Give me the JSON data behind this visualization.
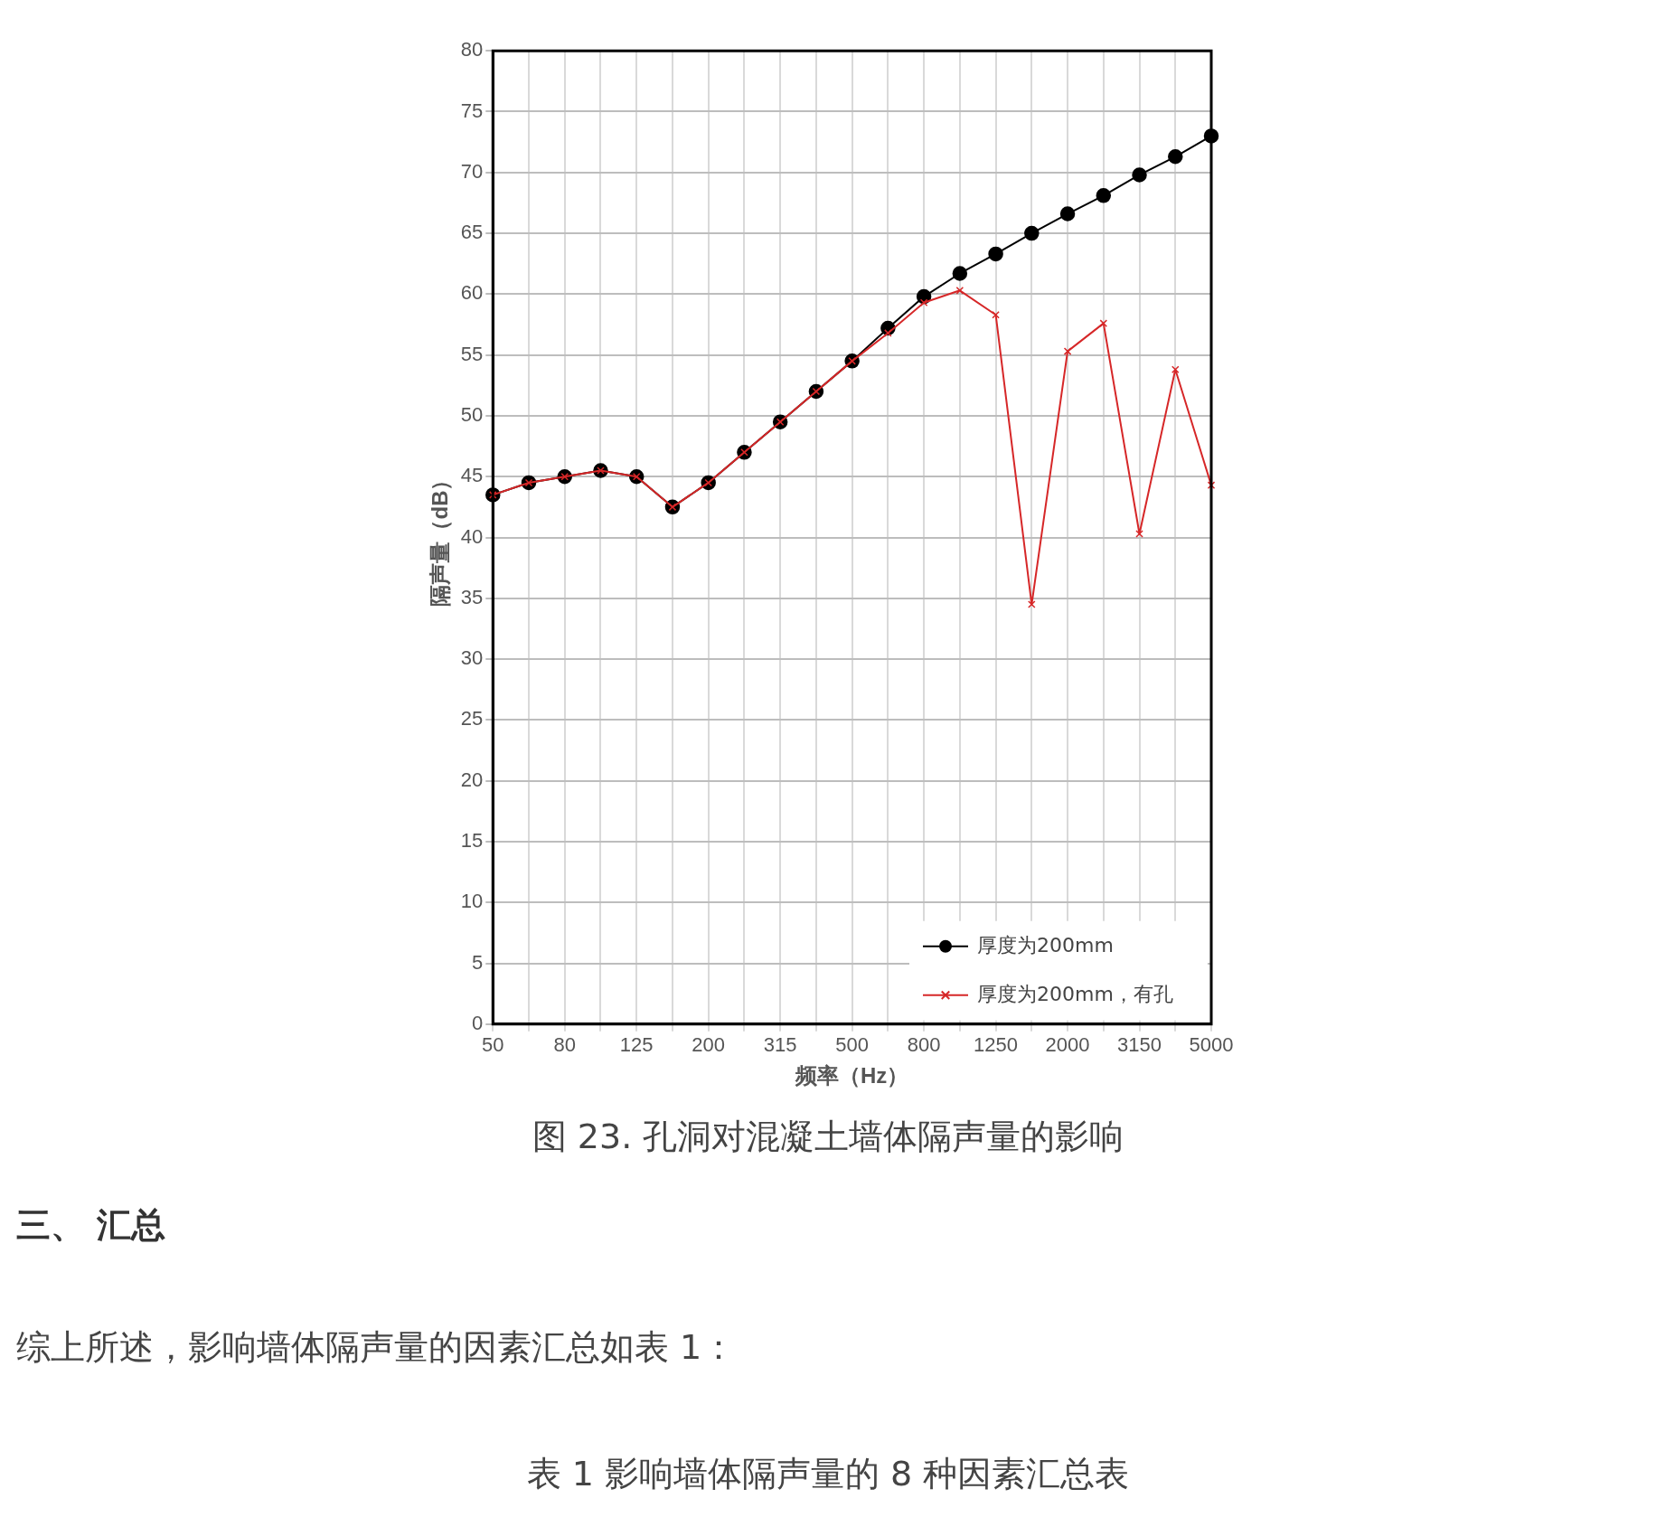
{
  "chart_data": {
    "type": "line",
    "title": "图 23. 孔洞对混凝土墙体隔声量的影响",
    "xlabel": "频率（Hz）",
    "ylabel": "隔声量（dB）",
    "categories": [
      "50",
      null,
      "80",
      null,
      "125",
      null,
      "200",
      null,
      "315",
      null,
      "500",
      null,
      "800",
      null,
      "1250",
      null,
      "2000",
      null,
      "3150",
      null,
      "5000"
    ],
    "series": [
      {
        "name": "厚度为200mm",
        "color": "#000000",
        "marker": "circle",
        "values": [
          43.5,
          44.5,
          45,
          45.5,
          45,
          42.5,
          44.5,
          47,
          49.5,
          52,
          54.5,
          57.2,
          59.8,
          61.7,
          63.3,
          65,
          66.6,
          68.1,
          69.8,
          71.3,
          73
        ]
      },
      {
        "name": "厚度为200mm，有孔",
        "color": "#d62728",
        "marker": "cross",
        "values": [
          43.5,
          44.5,
          45,
          45.5,
          45,
          42.5,
          44.5,
          47,
          49.5,
          52,
          54.5,
          56.8,
          59.3,
          60.3,
          58.3,
          34.5,
          55.3,
          57.6,
          40.3,
          53.8,
          44.3
        ]
      }
    ],
    "ylim": [
      0,
      80
    ],
    "yticks": [
      0,
      5,
      10,
      15,
      20,
      25,
      30,
      35,
      40,
      45,
      50,
      55,
      60,
      65,
      70,
      75,
      80
    ],
    "grid": true,
    "legend": "bottom right",
    "line_style": "solid",
    "annotations": [
      "三、 汇总",
      "综上所述，影响墙体隔声量的因素汇总如表 1：",
      "表 1 影响墙体隔声量的 8 种因素汇总表"
    ]
  }
}
